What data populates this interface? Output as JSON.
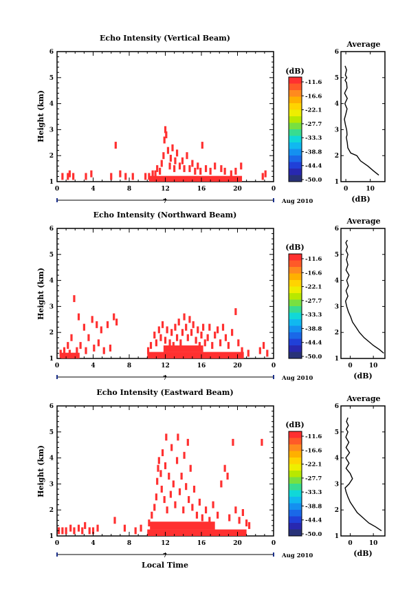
{
  "figure": {
    "date_label": "Aug 2010",
    "day_label": "7",
    "xlabel": "Local Time"
  },
  "colorbar": {
    "unit": "(dB)",
    "ticks": [
      "-11.6",
      "-16.6",
      "-22.1",
      "-27.7",
      "-33.3",
      "-38.8",
      "-44.4",
      "-50.0"
    ],
    "colors": [
      "#ff3030",
      "#ff5a28",
      "#ff8a1e",
      "#ffb000",
      "#ffd400",
      "#eeee00",
      "#b8e800",
      "#78e040",
      "#38dc90",
      "#10d8d8",
      "#10b8f0",
      "#1490f0",
      "#1a68e8",
      "#2040d8",
      "#2828b0",
      "#283278"
    ]
  },
  "chart_data": [
    {
      "type": "heatmap",
      "title": "Echo Intensity (Vertical Beam)",
      "xlabel": "",
      "ylabel": "Height (km)",
      "xlim": [
        0,
        24
      ],
      "ylim": [
        1,
        6
      ],
      "xticks": [
        "0",
        "4",
        "8",
        "12",
        "16",
        "20",
        "0"
      ],
      "yticks": [
        "1",
        "2",
        "3",
        "4",
        "5",
        "6"
      ],
      "points": [
        {
          "t": 0.6,
          "h": 1.2
        },
        {
          "t": 1.2,
          "h": 1.2
        },
        {
          "t": 1.4,
          "h": 1.3
        },
        {
          "t": 1.8,
          "h": 1.2
        },
        {
          "t": 3.2,
          "h": 1.2
        },
        {
          "t": 3.8,
          "h": 1.3
        },
        {
          "t": 6.0,
          "h": 1.2
        },
        {
          "t": 6.5,
          "h": 2.4
        },
        {
          "t": 7.0,
          "h": 1.3
        },
        {
          "t": 7.6,
          "h": 1.2
        },
        {
          "t": 8.4,
          "h": 1.2
        },
        {
          "t": 9.8,
          "h": 1.2
        },
        {
          "t": 10.2,
          "h": 1.2
        },
        {
          "t": 10.6,
          "h": 1.3
        },
        {
          "t": 10.9,
          "h": 1.3
        },
        {
          "t": 11.1,
          "h": 1.5
        },
        {
          "t": 11.4,
          "h": 1.4
        },
        {
          "t": 11.6,
          "h": 1.7
        },
        {
          "t": 11.8,
          "h": 2.0
        },
        {
          "t": 11.9,
          "h": 2.6
        },
        {
          "t": 12.0,
          "h": 3.0
        },
        {
          "t": 12.1,
          "h": 2.8
        },
        {
          "t": 12.3,
          "h": 2.2
        },
        {
          "t": 12.5,
          "h": 1.6
        },
        {
          "t": 12.6,
          "h": 1.9
        },
        {
          "t": 12.8,
          "h": 2.3
        },
        {
          "t": 13.0,
          "h": 1.5
        },
        {
          "t": 13.1,
          "h": 1.8
        },
        {
          "t": 13.3,
          "h": 2.1
        },
        {
          "t": 13.6,
          "h": 1.6
        },
        {
          "t": 13.9,
          "h": 1.8
        },
        {
          "t": 14.1,
          "h": 1.5
        },
        {
          "t": 14.4,
          "h": 2.0
        },
        {
          "t": 14.7,
          "h": 1.5
        },
        {
          "t": 15.0,
          "h": 1.7
        },
        {
          "t": 15.3,
          "h": 1.4
        },
        {
          "t": 15.6,
          "h": 1.6
        },
        {
          "t": 15.9,
          "h": 1.4
        },
        {
          "t": 16.1,
          "h": 2.4
        },
        {
          "t": 16.5,
          "h": 1.5
        },
        {
          "t": 17.0,
          "h": 1.4
        },
        {
          "t": 17.5,
          "h": 1.6
        },
        {
          "t": 18.2,
          "h": 1.5
        },
        {
          "t": 18.6,
          "h": 1.4
        },
        {
          "t": 19.3,
          "h": 1.3
        },
        {
          "t": 19.8,
          "h": 1.4
        },
        {
          "t": 20.4,
          "h": 1.6
        },
        {
          "t": 22.8,
          "h": 1.2
        },
        {
          "t": 23.1,
          "h": 1.3
        }
      ],
      "bands": [
        {
          "t0": 10.2,
          "t1": 20.5,
          "h0": 1.0,
          "h1": 1.22
        }
      ],
      "profile": {
        "xlim": [
          -2,
          16
        ],
        "xticks": [
          "0",
          "10"
        ],
        "ylim": [
          1,
          6
        ],
        "yticks": [
          "1",
          "2",
          "3",
          "4",
          "5",
          "6"
        ],
        "title": "Average",
        "xlabel": "(dB)",
        "x": [
          13.5,
          11.5,
          9.0,
          6.0,
          4.5,
          2.0,
          0.8,
          0.6,
          0.2,
          0.5,
          0.4,
          0.3,
          -0.2,
          -0.6,
          0.0,
          0.5,
          -0.4,
          0.6,
          -0.5,
          0.5,
          0.3,
          -0.3,
          0.4,
          -0.2,
          0.3,
          -0.3
        ],
        "h": [
          1.25,
          1.4,
          1.6,
          1.8,
          2.0,
          2.1,
          2.3,
          2.5,
          2.7,
          2.8,
          2.95,
          3.0,
          3.2,
          3.4,
          3.6,
          3.8,
          4.0,
          4.2,
          4.4,
          4.6,
          4.8,
          4.9,
          5.0,
          5.1,
          5.3,
          5.45
        ]
      }
    },
    {
      "type": "heatmap",
      "title": "Echo Intensity (Northward Beam)",
      "xlabel": "",
      "ylabel": "Height (km)",
      "xlim": [
        0,
        24
      ],
      "ylim": [
        1,
        6
      ],
      "xticks": [
        "0",
        "4",
        "8",
        "12",
        "16",
        "20",
        "0"
      ],
      "yticks": [
        "1",
        "2",
        "3",
        "4",
        "5",
        "6"
      ],
      "points": [
        {
          "t": 0.4,
          "h": 1.2
        },
        {
          "t": 0.8,
          "h": 1.3
        },
        {
          "t": 1.2,
          "h": 1.5
        },
        {
          "t": 1.4,
          "h": 1.2
        },
        {
          "t": 1.6,
          "h": 1.8
        },
        {
          "t": 1.9,
          "h": 3.3
        },
        {
          "t": 2.2,
          "h": 1.3
        },
        {
          "t": 2.4,
          "h": 2.6
        },
        {
          "t": 2.6,
          "h": 1.5
        },
        {
          "t": 3.0,
          "h": 2.2
        },
        {
          "t": 3.2,
          "h": 1.3
        },
        {
          "t": 3.5,
          "h": 1.8
        },
        {
          "t": 3.9,
          "h": 2.5
        },
        {
          "t": 4.1,
          "h": 1.4
        },
        {
          "t": 4.4,
          "h": 2.3
        },
        {
          "t": 4.6,
          "h": 1.6
        },
        {
          "t": 4.9,
          "h": 2.1
        },
        {
          "t": 5.2,
          "h": 1.3
        },
        {
          "t": 5.6,
          "h": 2.3
        },
        {
          "t": 5.9,
          "h": 1.4
        },
        {
          "t": 6.3,
          "h": 2.6
        },
        {
          "t": 6.6,
          "h": 2.4
        },
        {
          "t": 10.1,
          "h": 1.3
        },
        {
          "t": 10.4,
          "h": 1.5
        },
        {
          "t": 10.8,
          "h": 1.9
        },
        {
          "t": 11.0,
          "h": 1.6
        },
        {
          "t": 11.3,
          "h": 2.1
        },
        {
          "t": 11.5,
          "h": 1.8
        },
        {
          "t": 11.7,
          "h": 2.3
        },
        {
          "t": 12.0,
          "h": 1.7
        },
        {
          "t": 12.2,
          "h": 2.1
        },
        {
          "t": 12.5,
          "h": 1.6
        },
        {
          "t": 12.7,
          "h": 2.0
        },
        {
          "t": 12.9,
          "h": 1.5
        },
        {
          "t": 13.1,
          "h": 2.2
        },
        {
          "t": 13.3,
          "h": 1.8
        },
        {
          "t": 13.5,
          "h": 2.4
        },
        {
          "t": 13.7,
          "h": 1.6
        },
        {
          "t": 13.9,
          "h": 2.0
        },
        {
          "t": 14.1,
          "h": 2.6
        },
        {
          "t": 14.3,
          "h": 2.2
        },
        {
          "t": 14.5,
          "h": 1.8
        },
        {
          "t": 14.7,
          "h": 2.5
        },
        {
          "t": 14.9,
          "h": 2.0
        },
        {
          "t": 15.1,
          "h": 2.3
        },
        {
          "t": 15.4,
          "h": 1.7
        },
        {
          "t": 15.6,
          "h": 2.1
        },
        {
          "t": 15.8,
          "h": 1.5
        },
        {
          "t": 16.0,
          "h": 1.9
        },
        {
          "t": 16.2,
          "h": 2.2
        },
        {
          "t": 16.4,
          "h": 1.6
        },
        {
          "t": 16.7,
          "h": 1.8
        },
        {
          "t": 16.9,
          "h": 2.2
        },
        {
          "t": 17.2,
          "h": 1.5
        },
        {
          "t": 17.5,
          "h": 1.9
        },
        {
          "t": 17.8,
          "h": 2.1
        },
        {
          "t": 18.1,
          "h": 1.6
        },
        {
          "t": 18.4,
          "h": 2.2
        },
        {
          "t": 18.7,
          "h": 1.8
        },
        {
          "t": 19.0,
          "h": 1.5
        },
        {
          "t": 19.4,
          "h": 2.0
        },
        {
          "t": 19.8,
          "h": 2.8
        },
        {
          "t": 20.1,
          "h": 1.6
        },
        {
          "t": 20.5,
          "h": 1.3
        },
        {
          "t": 21.2,
          "h": 1.2
        },
        {
          "t": 22.5,
          "h": 1.3
        },
        {
          "t": 22.9,
          "h": 1.5
        },
        {
          "t": 23.3,
          "h": 1.2
        }
      ],
      "bands": [
        {
          "t0": 0.3,
          "t1": 2.5,
          "h0": 1.0,
          "h1": 1.22
        },
        {
          "t0": 10.0,
          "t1": 20.7,
          "h0": 1.0,
          "h1": 1.25
        },
        {
          "t0": 11.8,
          "t1": 16.2,
          "h0": 1.25,
          "h1": 1.5
        }
      ],
      "profile": {
        "xlim": [
          -4,
          15
        ],
        "xticks": [
          "0",
          "10"
        ],
        "ylim": [
          1,
          6
        ],
        "yticks": [
          "1",
          "2",
          "3",
          "4",
          "5",
          "6"
        ],
        "title": "Average",
        "xlabel": "(dB)",
        "x": [
          14.5,
          12.5,
          10.0,
          8.0,
          6.0,
          4.0,
          2.5,
          1.0,
          0.2,
          -0.8,
          -1.5,
          -2.0,
          -1.0,
          -1.8,
          -0.8,
          -1.5,
          -0.5,
          -1.8,
          -1.0,
          -1.6,
          -1.0,
          -1.8,
          -1.2,
          -1.9,
          -1.2
        ],
        "h": [
          1.2,
          1.35,
          1.5,
          1.65,
          1.8,
          2.0,
          2.2,
          2.4,
          2.6,
          2.8,
          3.0,
          3.2,
          3.4,
          3.6,
          3.8,
          4.0,
          4.2,
          4.4,
          4.6,
          4.8,
          5.0,
          5.15,
          5.3,
          5.45,
          5.55
        ]
      }
    },
    {
      "type": "heatmap",
      "title": "Echo Intensity (Eastward Beam)",
      "xlabel": "Local Time",
      "ylabel": "Height (km)",
      "xlim": [
        0,
        24
      ],
      "ylim": [
        1,
        6
      ],
      "xticks": [
        "0",
        "4",
        "8",
        "12",
        "16",
        "20",
        "0"
      ],
      "yticks": [
        "1",
        "2",
        "3",
        "4",
        "5",
        "6"
      ],
      "points": [
        {
          "t": 0.2,
          "h": 1.2
        },
        {
          "t": 0.6,
          "h": 1.2
        },
        {
          "t": 1.0,
          "h": 1.2
        },
        {
          "t": 1.5,
          "h": 1.3
        },
        {
          "t": 1.9,
          "h": 1.2
        },
        {
          "t": 2.4,
          "h": 1.3
        },
        {
          "t": 2.8,
          "h": 1.2
        },
        {
          "t": 3.1,
          "h": 1.4
        },
        {
          "t": 3.6,
          "h": 1.2
        },
        {
          "t": 4.0,
          "h": 1.2
        },
        {
          "t": 4.5,
          "h": 1.3
        },
        {
          "t": 6.4,
          "h": 1.6
        },
        {
          "t": 7.5,
          "h": 1.3
        },
        {
          "t": 8.7,
          "h": 1.2
        },
        {
          "t": 9.3,
          "h": 1.3
        },
        {
          "t": 10.2,
          "h": 1.5
        },
        {
          "t": 10.5,
          "h": 1.8
        },
        {
          "t": 10.8,
          "h": 2.1
        },
        {
          "t": 11.0,
          "h": 2.5
        },
        {
          "t": 11.1,
          "h": 3.1
        },
        {
          "t": 11.2,
          "h": 3.6
        },
        {
          "t": 11.3,
          "h": 3.9
        },
        {
          "t": 11.5,
          "h": 3.4
        },
        {
          "t": 11.6,
          "h": 2.8
        },
        {
          "t": 11.7,
          "h": 4.2
        },
        {
          "t": 11.9,
          "h": 2.4
        },
        {
          "t": 12.0,
          "h": 3.7
        },
        {
          "t": 12.1,
          "h": 4.8
        },
        {
          "t": 12.2,
          "h": 2.0
        },
        {
          "t": 12.4,
          "h": 3.3
        },
        {
          "t": 12.6,
          "h": 2.6
        },
        {
          "t": 12.7,
          "h": 4.4
        },
        {
          "t": 12.9,
          "h": 3.0
        },
        {
          "t": 13.1,
          "h": 2.2
        },
        {
          "t": 13.3,
          "h": 3.9
        },
        {
          "t": 13.4,
          "h": 4.8
        },
        {
          "t": 13.6,
          "h": 2.7
        },
        {
          "t": 13.8,
          "h": 3.3
        },
        {
          "t": 14.0,
          "h": 2.0
        },
        {
          "t": 14.1,
          "h": 4.1
        },
        {
          "t": 14.3,
          "h": 2.9
        },
        {
          "t": 14.5,
          "h": 4.6
        },
        {
          "t": 14.6,
          "h": 2.4
        },
        {
          "t": 14.8,
          "h": 3.6
        },
        {
          "t": 15.0,
          "h": 2.1
        },
        {
          "t": 15.2,
          "h": 2.8
        },
        {
          "t": 15.5,
          "h": 1.8
        },
        {
          "t": 15.8,
          "h": 2.3
        },
        {
          "t": 16.1,
          "h": 1.7
        },
        {
          "t": 16.5,
          "h": 2.0
        },
        {
          "t": 16.9,
          "h": 1.6
        },
        {
          "t": 17.3,
          "h": 2.2
        },
        {
          "t": 17.8,
          "h": 1.8
        },
        {
          "t": 18.2,
          "h": 3.0
        },
        {
          "t": 18.6,
          "h": 3.6
        },
        {
          "t": 18.9,
          "h": 3.3
        },
        {
          "t": 19.1,
          "h": 1.7
        },
        {
          "t": 19.5,
          "h": 4.6
        },
        {
          "t": 19.8,
          "h": 2.0
        },
        {
          "t": 20.2,
          "h": 1.6
        },
        {
          "t": 20.6,
          "h": 1.9
        },
        {
          "t": 21.0,
          "h": 1.5
        },
        {
          "t": 21.3,
          "h": 1.4
        },
        {
          "t": 22.7,
          "h": 4.6
        }
      ],
      "bands": [
        {
          "t0": 10.0,
          "t1": 21.0,
          "h0": 1.0,
          "h1": 1.25
        },
        {
          "t0": 10.3,
          "t1": 17.5,
          "h0": 1.25,
          "h1": 1.55
        }
      ],
      "profile": {
        "xlim": [
          -4,
          15
        ],
        "xticks": [
          "0",
          "10"
        ],
        "ylim": [
          1,
          6
        ],
        "yticks": [
          "1",
          "2",
          "3",
          "4",
          "5",
          "6"
        ],
        "title": "Average",
        "xlabel": "(dB)",
        "x": [
          13.5,
          11.0,
          8.0,
          5.5,
          3.0,
          1.5,
          0.0,
          -1.0,
          -1.8,
          -2.2,
          -0.5,
          1.0,
          0.0,
          -1.8,
          -0.5,
          -1.9,
          -0.3,
          -1.8,
          -0.6,
          -1.9,
          -1.0,
          -1.7,
          -0.8,
          -1.6,
          -1.0
        ],
        "h": [
          1.2,
          1.35,
          1.5,
          1.7,
          1.9,
          2.1,
          2.3,
          2.5,
          2.7,
          2.85,
          3.0,
          3.2,
          3.4,
          3.6,
          3.8,
          4.0,
          4.2,
          4.4,
          4.6,
          4.8,
          5.0,
          5.1,
          5.25,
          5.4,
          5.55
        ]
      }
    }
  ]
}
